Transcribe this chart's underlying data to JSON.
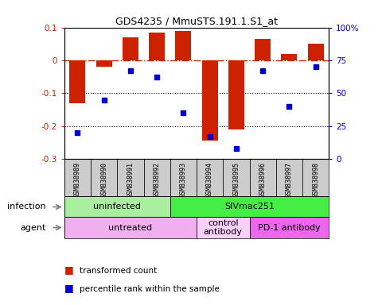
{
  "title": "GDS4235 / MmuSTS.191.1.S1_at",
  "samples": [
    "GSM838989",
    "GSM838990",
    "GSM838991",
    "GSM838992",
    "GSM838993",
    "GSM838994",
    "GSM838995",
    "GSM838996",
    "GSM838997",
    "GSM838998"
  ],
  "transformed_count": [
    -0.13,
    -0.02,
    0.07,
    0.085,
    0.09,
    -0.245,
    -0.21,
    0.065,
    0.02,
    0.05
  ],
  "percentile_rank": [
    20,
    45,
    67,
    62,
    35,
    17,
    8,
    67,
    40,
    70
  ],
  "ylim_left": [
    -0.3,
    0.1
  ],
  "ylim_right": [
    0,
    100
  ],
  "yticks_left": [
    -0.3,
    -0.2,
    -0.1,
    0.0,
    0.1
  ],
  "ytick_labels_left": [
    "-0.3",
    "-0.2",
    "-0.1",
    "0",
    "0.1"
  ],
  "yticks_right": [
    0,
    25,
    50,
    75,
    100
  ],
  "ytick_labels_right": [
    "0",
    "25",
    "50",
    "75",
    "100%"
  ],
  "infection_groups": [
    {
      "label": "uninfected",
      "start": 0,
      "end": 4,
      "color": "#aaeea0"
    },
    {
      "label": "SIVmac251",
      "start": 4,
      "end": 10,
      "color": "#44ee44"
    }
  ],
  "agent_groups": [
    {
      "label": "untreated",
      "start": 0,
      "end": 5,
      "color": "#f0b0f0"
    },
    {
      "label": "control\nantibody",
      "start": 5,
      "end": 7,
      "color": "#f8d0f8"
    },
    {
      "label": "PD-1 antibody",
      "start": 7,
      "end": 10,
      "color": "#ee66ee"
    }
  ],
  "bar_color": "#cc2200",
  "dot_color": "#0000cc",
  "left_axis_color": "#cc2200",
  "right_axis_color": "#0000cc",
  "ref_line_color": "#cc2200",
  "grid_line_color": "#000000",
  "bg_color": "#ffffff",
  "sample_bg_color": "#bbbbbb",
  "infection_label": "infection",
  "agent_label": "agent",
  "legend_bar_label": "transformed count",
  "legend_dot_label": "percentile rank within the sample"
}
